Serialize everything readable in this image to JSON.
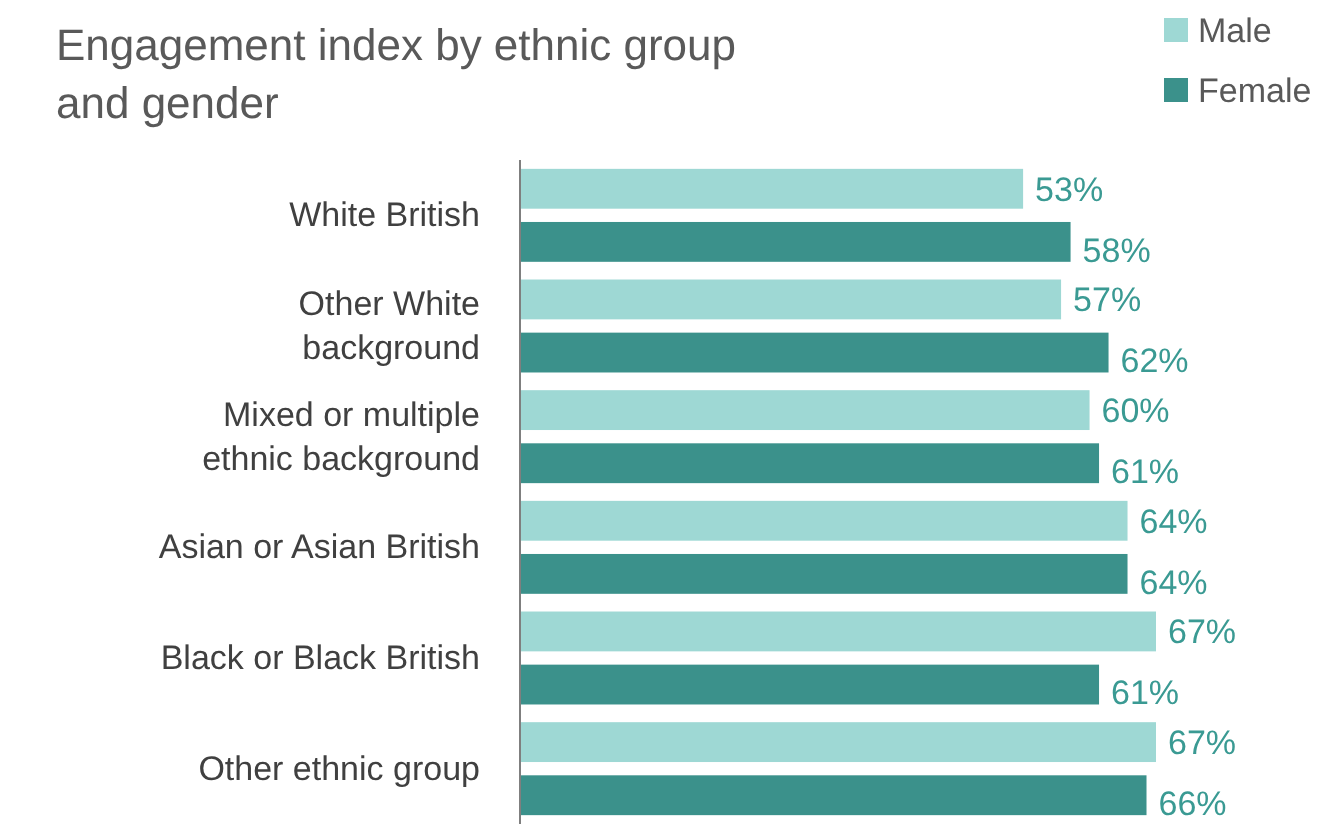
{
  "chart_data": {
    "type": "bar",
    "orientation": "horizontal",
    "title": "Engagement index by ethnic group\nand gender",
    "categories": [
      "White British",
      "Other White\nbackground",
      "Mixed or multiple\nethnic background",
      "Asian or Asian British",
      "Black or Black British",
      "Other ethnic group"
    ],
    "series": [
      {
        "name": "Male",
        "color": "#9ed8d4",
        "values": [
          53,
          57,
          60,
          64,
          67,
          67
        ],
        "value_labels": [
          "53%",
          "57%",
          "60%",
          "64%",
          "67%",
          "67%"
        ]
      },
      {
        "name": "Female",
        "color": "#3b918b",
        "values": [
          58,
          62,
          61,
          64,
          61,
          66
        ],
        "value_labels": [
          "58%",
          "62%",
          "61%",
          "64%",
          "61%",
          "66%"
        ]
      }
    ],
    "tick_labels": "y",
    "legend": "top right"
  }
}
